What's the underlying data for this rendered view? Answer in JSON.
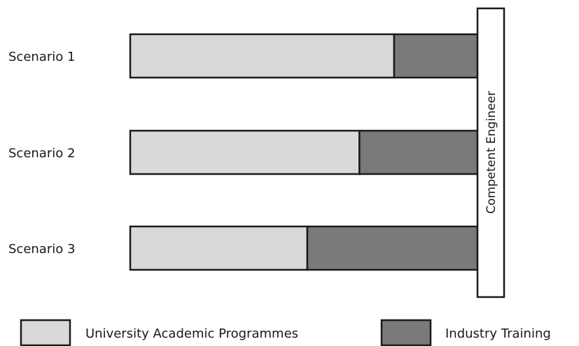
{
  "diagram": {
    "terminal_label": "Competent Engineer",
    "colors": {
      "university": "#d9d9d9",
      "industry": "#7a7a7a",
      "outline": "#1a1a1a",
      "terminal_fill": "#ffffff"
    }
  },
  "chart_data": {
    "type": "bar",
    "orientation": "horizontal",
    "stacked": true,
    "categories": [
      "Scenario 1",
      "Scenario 2",
      "Scenario 3"
    ],
    "series": [
      {
        "name": "University Academic Programmes",
        "values": [
          76,
          66,
          51
        ]
      },
      {
        "name": "Industry Training",
        "values": [
          24,
          34,
          49
        ]
      }
    ],
    "xlim": [
      0,
      100
    ],
    "grid": false,
    "legend": "bottom"
  }
}
